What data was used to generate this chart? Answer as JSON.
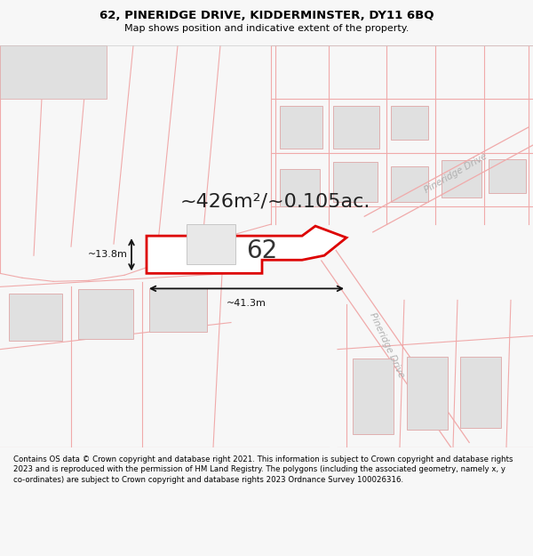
{
  "title_line1": "62, PINERIDGE DRIVE, KIDDERMINSTER, DY11 6BQ",
  "title_line2": "Map shows position and indicative extent of the property.",
  "footer_text": "Contains OS data © Crown copyright and database right 2021. This information is subject to Crown copyright and database rights 2023 and is reproduced with the permission of HM Land Registry. The polygons (including the associated geometry, namely x, y co-ordinates) are subject to Crown copyright and database rights 2023 Ordnance Survey 100026316.",
  "bg_color": "#f7f7f7",
  "map_bg": "#ffffff",
  "area_text": "~426m²/~0.105ac.",
  "label_62": "62",
  "dim_width": "~41.3m",
  "dim_height": "~13.8m",
  "road_label_ne": "Pineridge Drive",
  "road_label_se": "Pineridge Drive",
  "property_edge": "#dd0000",
  "road_line_color": "#f0aaaa",
  "building_fill": "#e0e0e0",
  "building_edge": "#e0b0b0"
}
